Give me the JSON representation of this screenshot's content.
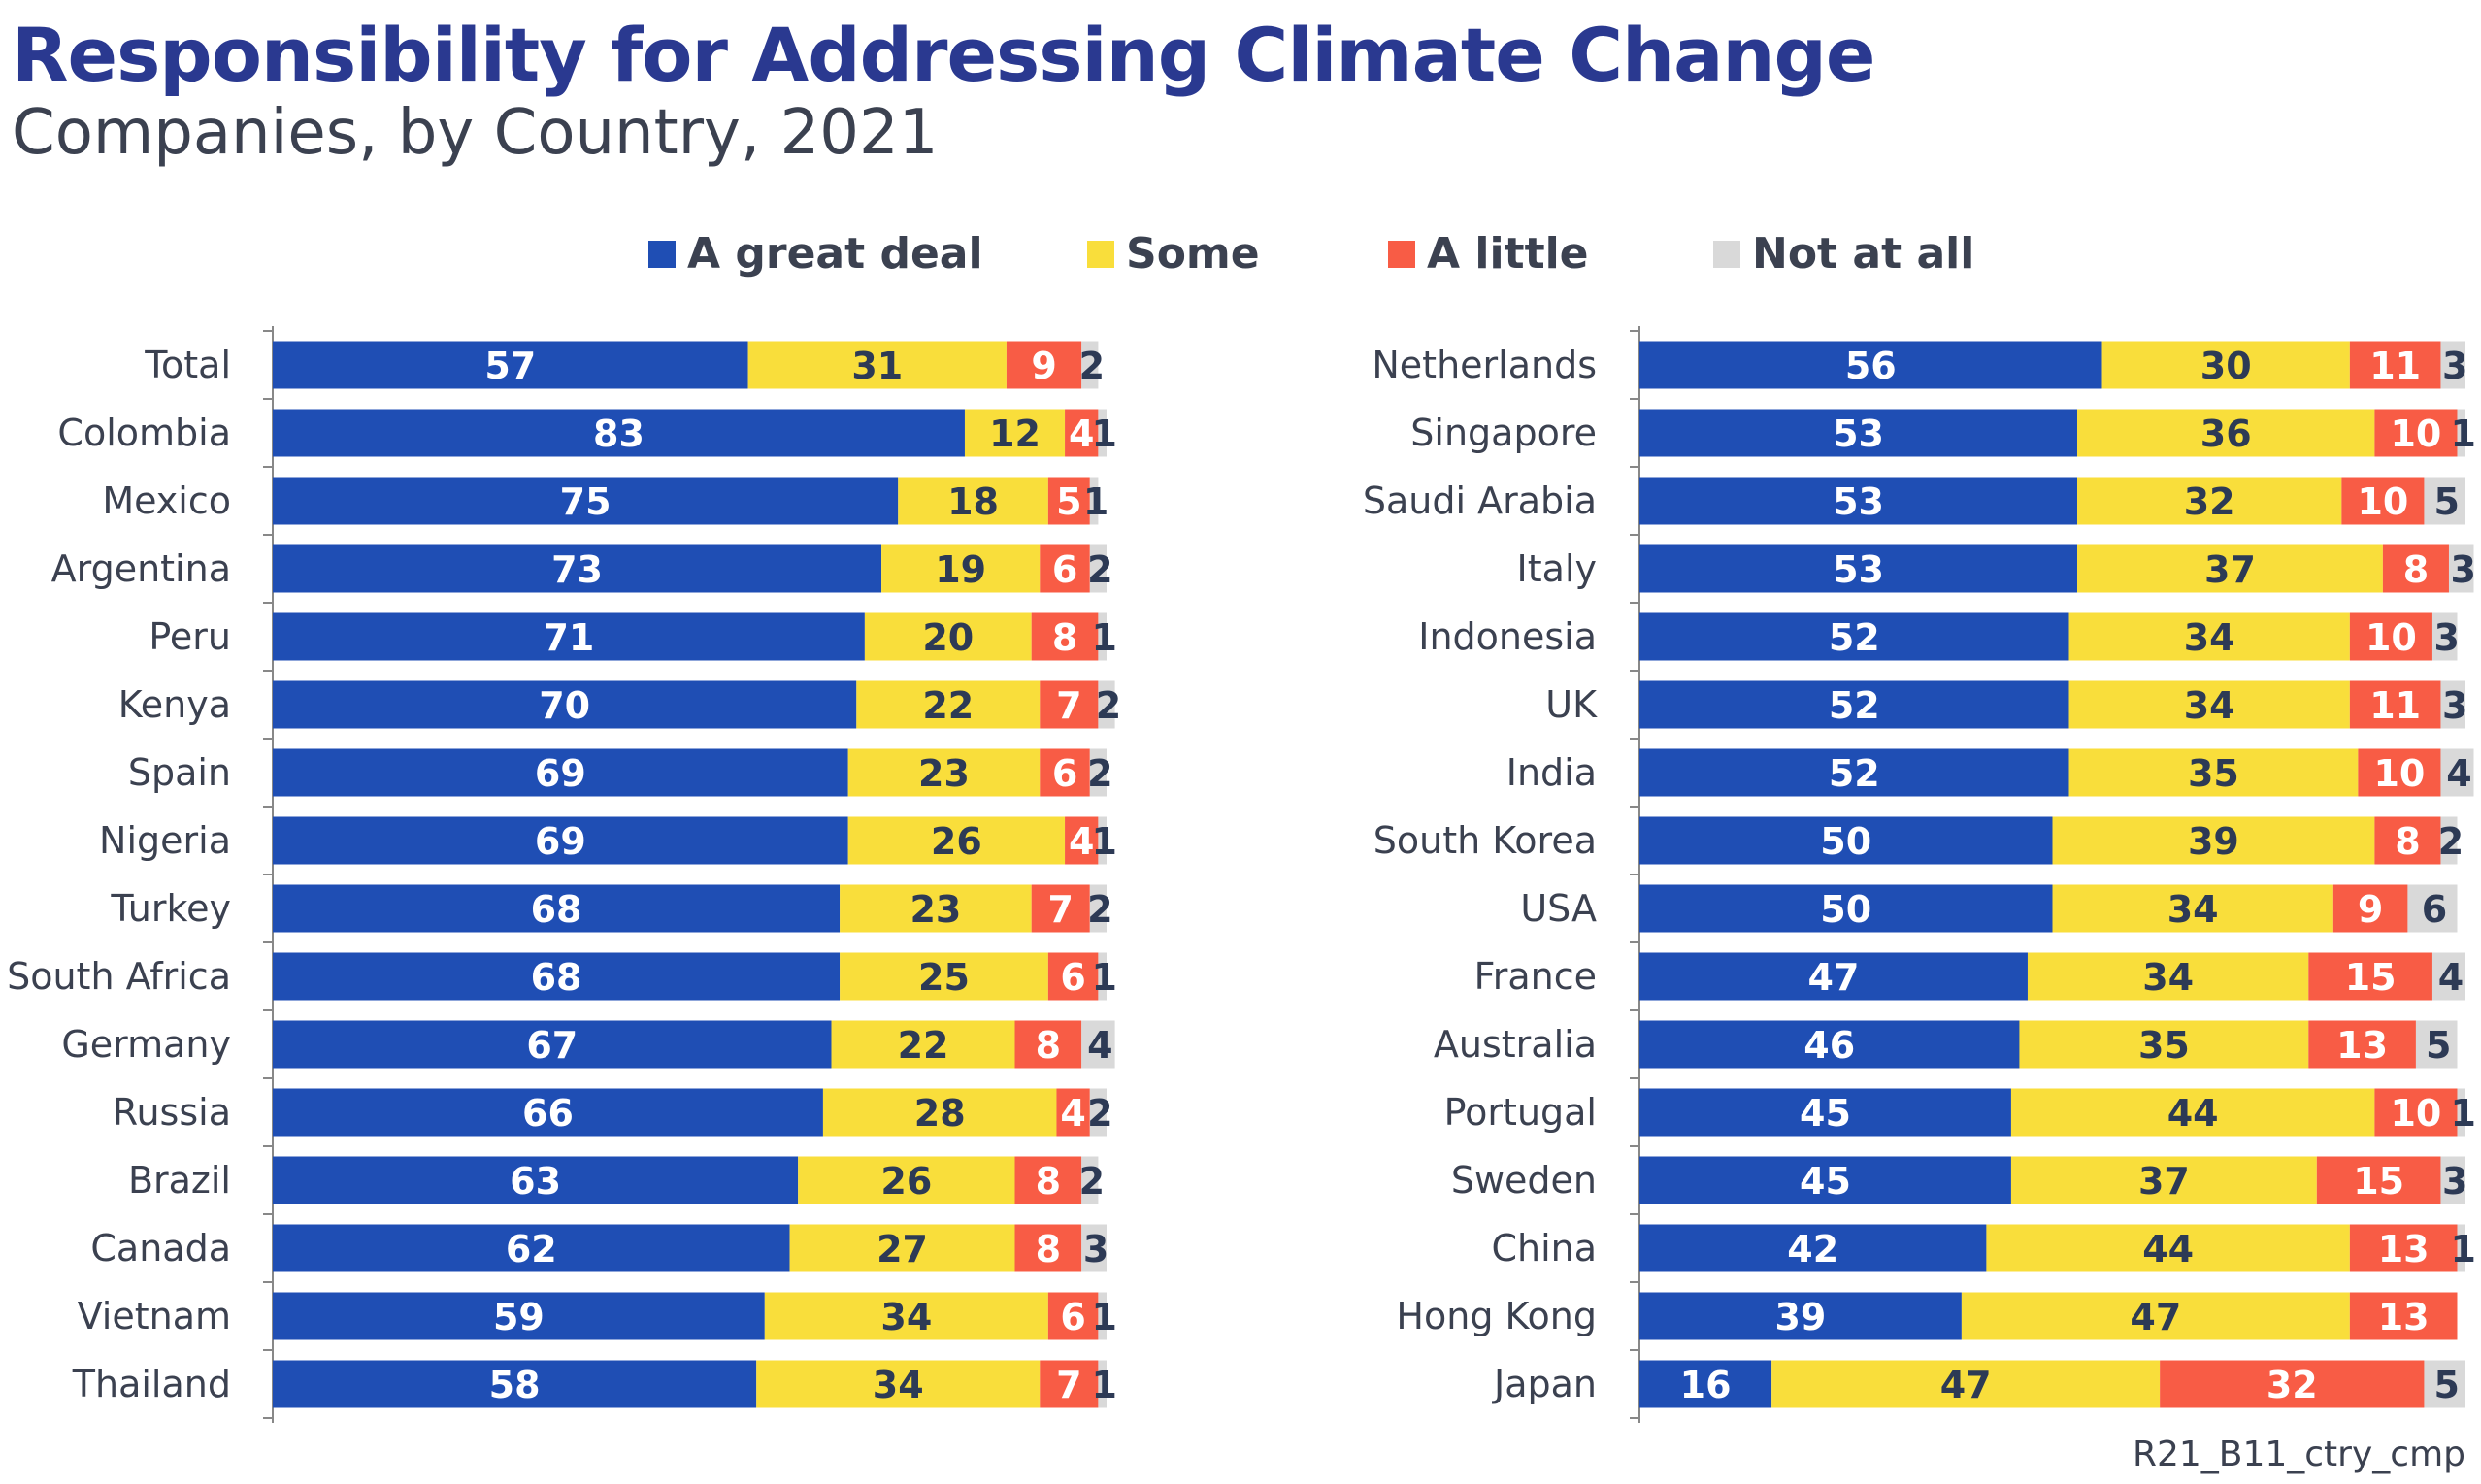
{
  "title": "Responsibility for Addressing Climate Change",
  "subtitle": "Companies, by Country, 2021",
  "footer": "R21_B11_ctry_cmp",
  "colors": {
    "A great deal": "#1f4eb4",
    "Some": "#f9de3b",
    "A little": "#f85c45",
    "Not at all": "#d9d9d9"
  },
  "chart_data": [
    {
      "type": "bar",
      "orientation": "horizontal",
      "stacked": true,
      "xlim": [
        0,
        100
      ],
      "legend": "top-center",
      "series_names": [
        "A great deal",
        "Some",
        "A little",
        "Not at all"
      ],
      "categories": [
        "Total",
        "Colombia",
        "Mexico",
        "Argentina",
        "Peru",
        "Kenya",
        "Spain",
        "Nigeria",
        "Turkey",
        "South Africa",
        "Germany",
        "Russia",
        "Brazil",
        "Canada",
        "Vietnam",
        "Thailand"
      ],
      "series": [
        {
          "name": "A great deal",
          "values": [
            57,
            83,
            75,
            73,
            71,
            70,
            69,
            69,
            68,
            68,
            67,
            66,
            63,
            62,
            59,
            58
          ]
        },
        {
          "name": "Some",
          "values": [
            31,
            12,
            18,
            19,
            20,
            22,
            23,
            26,
            23,
            25,
            22,
            28,
            26,
            27,
            34,
            34
          ]
        },
        {
          "name": "A little",
          "values": [
            9,
            4,
            5,
            6,
            8,
            7,
            6,
            4,
            7,
            6,
            8,
            4,
            8,
            8,
            6,
            7
          ]
        },
        {
          "name": "Not at all",
          "values": [
            2,
            1,
            1,
            2,
            1,
            2,
            2,
            1,
            2,
            1,
            4,
            2,
            2,
            3,
            1,
            1
          ]
        }
      ]
    },
    {
      "type": "bar",
      "orientation": "horizontal",
      "stacked": true,
      "xlim": [
        0,
        100
      ],
      "categories": [
        "Netherlands",
        "Singapore",
        "Saudi Arabia",
        "Italy",
        "Indonesia",
        "UK",
        "India",
        "South Korea",
        "USA",
        "France",
        "Australia",
        "Portugal",
        "Sweden",
        "China",
        "Hong Kong",
        "Japan"
      ],
      "series": [
        {
          "name": "A great deal",
          "values": [
            56,
            53,
            53,
            53,
            52,
            52,
            52,
            50,
            50,
            47,
            46,
            45,
            45,
            42,
            39,
            16
          ]
        },
        {
          "name": "Some",
          "values": [
            30,
            36,
            32,
            37,
            34,
            34,
            35,
            39,
            34,
            34,
            35,
            44,
            37,
            44,
            47,
            47
          ]
        },
        {
          "name": "A little",
          "values": [
            11,
            10,
            10,
            8,
            10,
            11,
            10,
            8,
            9,
            15,
            13,
            10,
            15,
            13,
            13,
            32
          ]
        },
        {
          "name": "Not at all",
          "values": [
            3,
            1,
            5,
            3,
            3,
            3,
            4,
            2,
            6,
            4,
            5,
            1,
            3,
            1,
            null,
            5
          ]
        }
      ]
    }
  ]
}
